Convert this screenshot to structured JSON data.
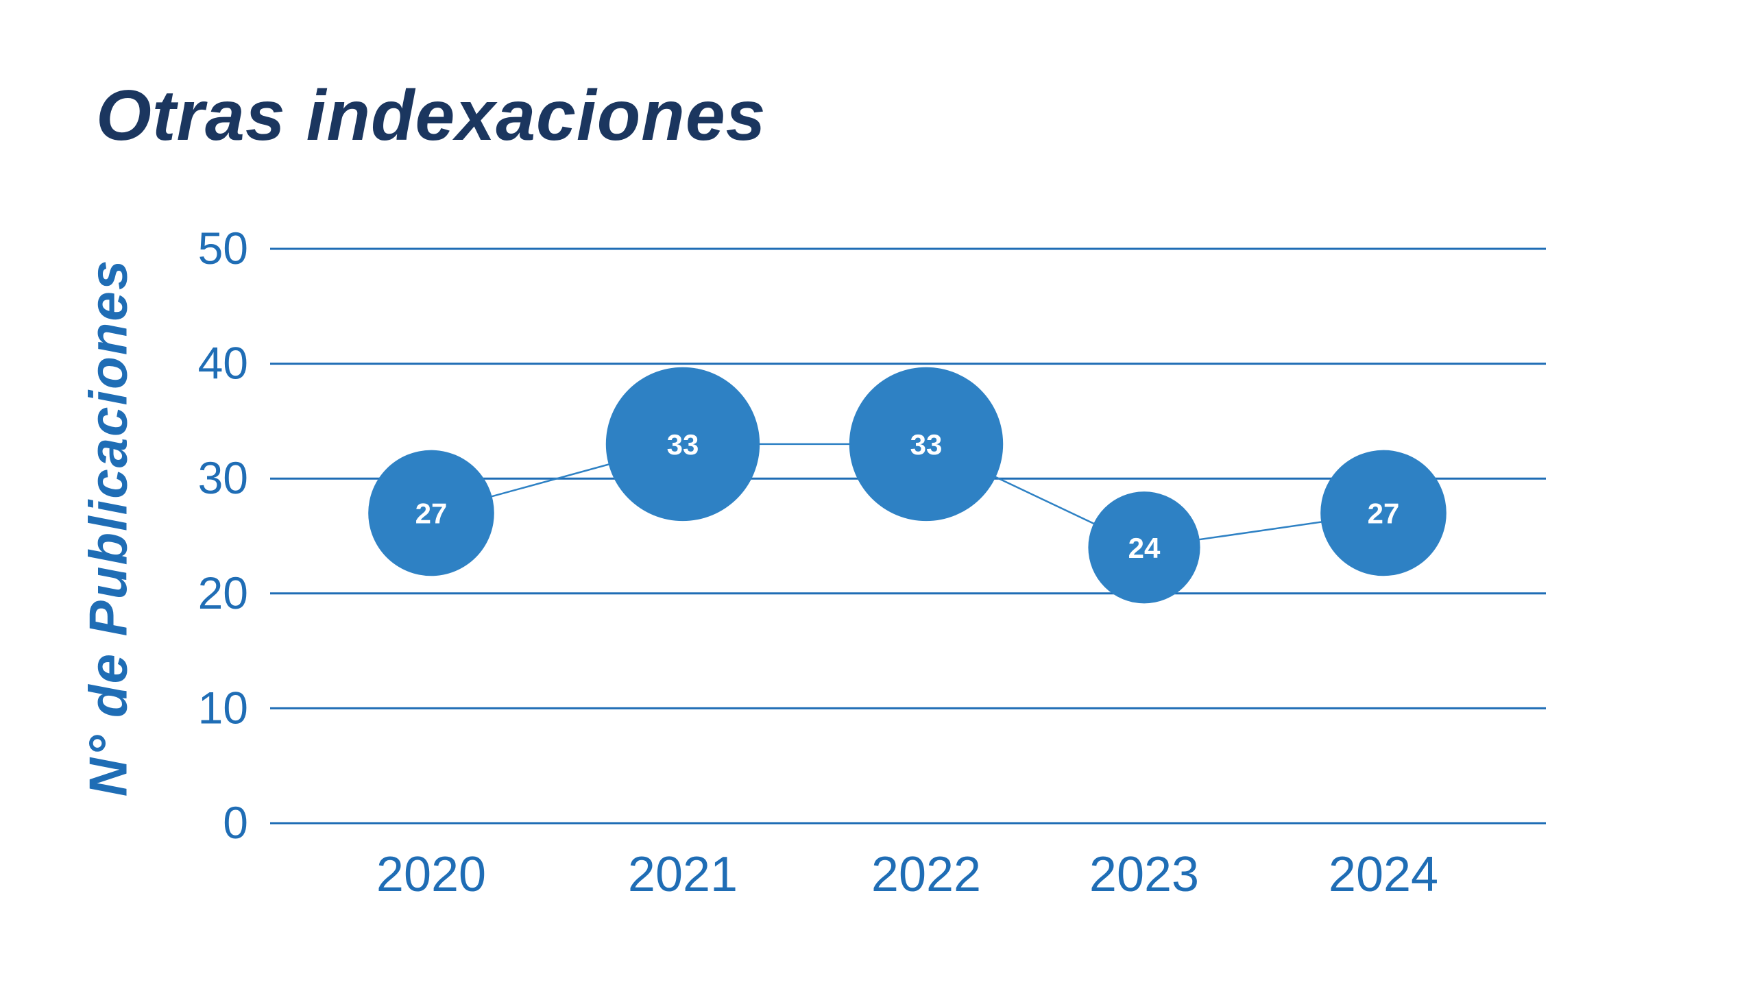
{
  "chart_data": {
    "type": "line",
    "title": "Otras indexaciones",
    "xlabel": "",
    "ylabel": "N° de Publicaciones",
    "categories": [
      "2020",
      "2021",
      "2022",
      "2023",
      "2024"
    ],
    "values": [
      27,
      33,
      33,
      24,
      27
    ],
    "data_labels": [
      "27",
      "33",
      "33",
      "24",
      "27"
    ],
    "yticks": [
      "0",
      "10",
      "20",
      "30",
      "40",
      "50"
    ],
    "ylim": [
      0,
      50
    ],
    "grid": true,
    "colors": {
      "title": "#1b365f",
      "axis_text": "#1f6db5",
      "marker": "#2e81c4",
      "grid": "#1f6db5"
    }
  }
}
